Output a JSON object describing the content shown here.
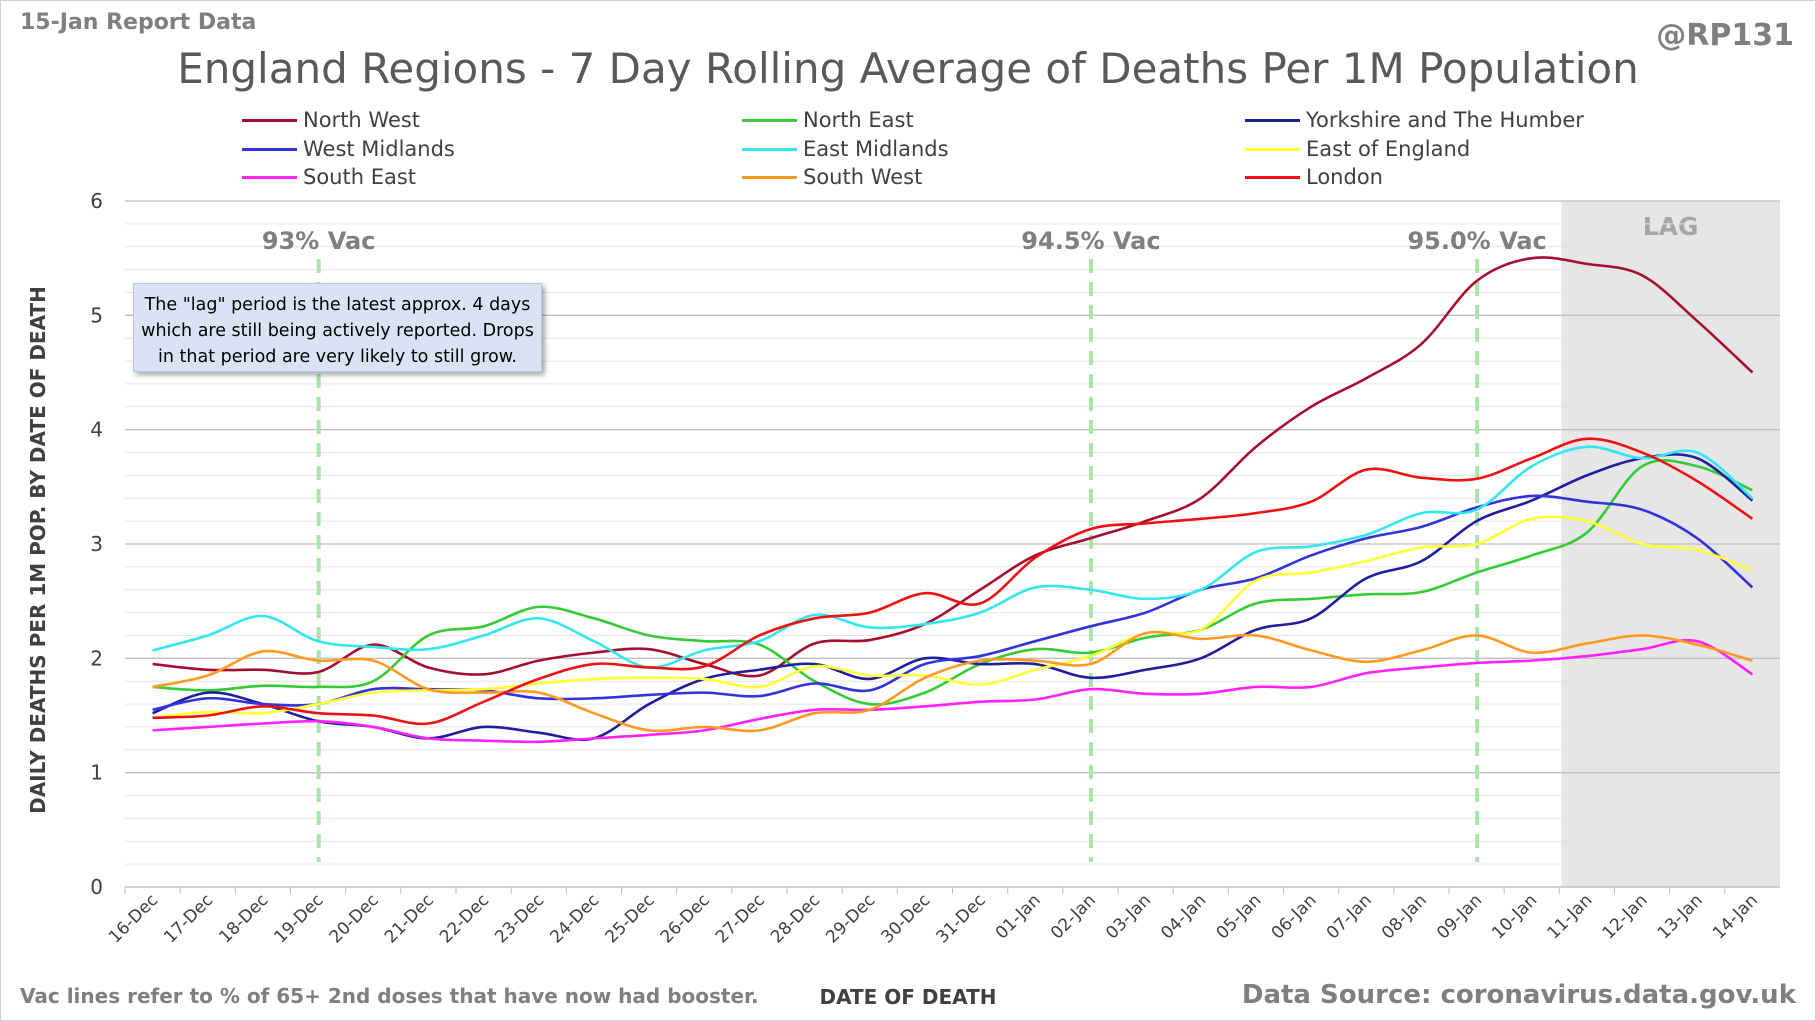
{
  "header": {
    "report_label": "15-Jan Report Data",
    "handle": "@RP131",
    "title": "England Regions - 7 Day Rolling Average of Deaths Per 1M Population"
  },
  "footer": {
    "left_note": "Vac lines refer to % of 65+ 2nd doses that have now had booster.",
    "source": "Data Source: coronavirus.data.gov.uk"
  },
  "note_box": "The \"lag\" period is the latest approx. 4 days which are still being actively reported.  Drops in that period are very likely to still grow.",
  "chart_data": {
    "type": "line",
    "xlabel": "DATE OF DEATH",
    "ylabel": "DAILY DEATHS PER 1M POP. BY DATE OF DEATH",
    "ylim": [
      0,
      6
    ],
    "yticks": [
      0,
      1,
      2,
      3,
      4,
      5,
      6
    ],
    "grid": true,
    "legend_position": "top",
    "categories": [
      "16-Dec",
      "17-Dec",
      "18-Dec",
      "19-Dec",
      "20-Dec",
      "21-Dec",
      "22-Dec",
      "23-Dec",
      "24-Dec",
      "25-Dec",
      "26-Dec",
      "27-Dec",
      "28-Dec",
      "29-Dec",
      "30-Dec",
      "31-Dec",
      "01-Jan",
      "02-Jan",
      "03-Jan",
      "04-Jan",
      "05-Jan",
      "06-Jan",
      "07-Jan",
      "08-Jan",
      "09-Jan",
      "10-Jan",
      "11-Jan",
      "12-Jan",
      "13-Jan",
      "14-Jan"
    ],
    "lag_region": {
      "label": "LAG",
      "from": "11-Jan",
      "to": "14-Jan"
    },
    "vac_lines": [
      {
        "label": "93% Vac",
        "x": "19-Dec"
      },
      {
        "label": "94.5% Vac",
        "x": "02-Jan"
      },
      {
        "label": "95.0% Vac",
        "x": "09-Jan"
      }
    ],
    "series": [
      {
        "name": "North West",
        "color": "#a50f2d",
        "values": [
          1.95,
          1.9,
          1.9,
          1.88,
          2.12,
          1.92,
          1.86,
          1.98,
          2.05,
          2.08,
          1.95,
          1.85,
          2.13,
          2.16,
          2.3,
          2.6,
          2.9,
          3.05,
          3.2,
          3.4,
          3.85,
          4.2,
          4.45,
          4.75,
          5.3,
          5.5,
          5.45,
          5.35,
          4.95,
          4.5
        ]
      },
      {
        "name": "North East",
        "color": "#33cc33",
        "values": [
          1.75,
          1.72,
          1.76,
          1.75,
          1.8,
          2.2,
          2.28,
          2.45,
          2.35,
          2.2,
          2.15,
          2.12,
          1.8,
          1.6,
          1.7,
          1.95,
          2.08,
          2.05,
          2.18,
          2.25,
          2.48,
          2.52,
          2.56,
          2.58,
          2.75,
          2.9,
          3.1,
          3.68,
          3.68,
          3.47
        ]
      },
      {
        "name": "Yorkshire and The Humber",
        "color": "#1f1f9e",
        "values": [
          1.52,
          1.7,
          1.6,
          1.45,
          1.4,
          1.3,
          1.4,
          1.35,
          1.3,
          1.6,
          1.82,
          1.9,
          1.95,
          1.82,
          2.0,
          1.95,
          1.95,
          1.83,
          1.9,
          2.0,
          2.25,
          2.35,
          2.7,
          2.85,
          3.2,
          3.38,
          3.6,
          3.75,
          3.75,
          3.38
        ]
      },
      {
        "name": "West Midlands",
        "color": "#3333dd",
        "values": [
          1.55,
          1.65,
          1.6,
          1.6,
          1.73,
          1.73,
          1.72,
          1.65,
          1.65,
          1.68,
          1.7,
          1.67,
          1.78,
          1.72,
          1.95,
          2.02,
          2.15,
          2.28,
          2.4,
          2.6,
          2.7,
          2.9,
          3.05,
          3.15,
          3.32,
          3.42,
          3.37,
          3.3,
          3.05,
          2.62
        ]
      },
      {
        "name": "East Midlands",
        "color": "#33e6f0",
        "values": [
          2.07,
          2.2,
          2.37,
          2.15,
          2.1,
          2.08,
          2.2,
          2.35,
          2.15,
          1.92,
          2.07,
          2.15,
          2.38,
          2.27,
          2.3,
          2.4,
          2.62,
          2.6,
          2.52,
          2.6,
          2.93,
          2.98,
          3.08,
          3.27,
          3.3,
          3.68,
          3.85,
          3.75,
          3.8,
          3.4
        ]
      },
      {
        "name": "East of England",
        "color": "#ffff33",
        "values": [
          1.48,
          1.53,
          1.52,
          1.6,
          1.7,
          1.72,
          1.73,
          1.78,
          1.82,
          1.83,
          1.82,
          1.75,
          1.93,
          1.85,
          1.85,
          1.77,
          1.9,
          2.02,
          2.22,
          2.25,
          2.68,
          2.75,
          2.85,
          2.97,
          3.0,
          3.22,
          3.2,
          3.0,
          2.95,
          2.77
        ]
      },
      {
        "name": "South East",
        "color": "#ff22ff",
        "values": [
          1.37,
          1.4,
          1.43,
          1.45,
          1.4,
          1.3,
          1.28,
          1.27,
          1.3,
          1.33,
          1.37,
          1.47,
          1.55,
          1.55,
          1.58,
          1.62,
          1.64,
          1.73,
          1.69,
          1.69,
          1.75,
          1.75,
          1.87,
          1.92,
          1.96,
          1.98,
          2.02,
          2.08,
          2.15,
          1.86
        ]
      },
      {
        "name": "South West",
        "color": "#ff9922",
        "values": [
          1.75,
          1.85,
          2.06,
          1.98,
          1.98,
          1.73,
          1.7,
          1.7,
          1.52,
          1.37,
          1.4,
          1.37,
          1.52,
          1.55,
          1.83,
          1.98,
          1.98,
          1.95,
          2.22,
          2.17,
          2.2,
          2.07,
          1.97,
          2.07,
          2.2,
          2.05,
          2.13,
          2.2,
          2.12,
          1.98
        ]
      },
      {
        "name": "London",
        "color": "#ee1111",
        "values": [
          1.48,
          1.5,
          1.58,
          1.52,
          1.5,
          1.43,
          1.62,
          1.82,
          1.95,
          1.92,
          1.93,
          2.2,
          2.35,
          2.4,
          2.57,
          2.48,
          2.88,
          3.13,
          3.18,
          3.22,
          3.27,
          3.37,
          3.65,
          3.58,
          3.57,
          3.75,
          3.92,
          3.8,
          3.55,
          3.22
        ]
      }
    ]
  }
}
